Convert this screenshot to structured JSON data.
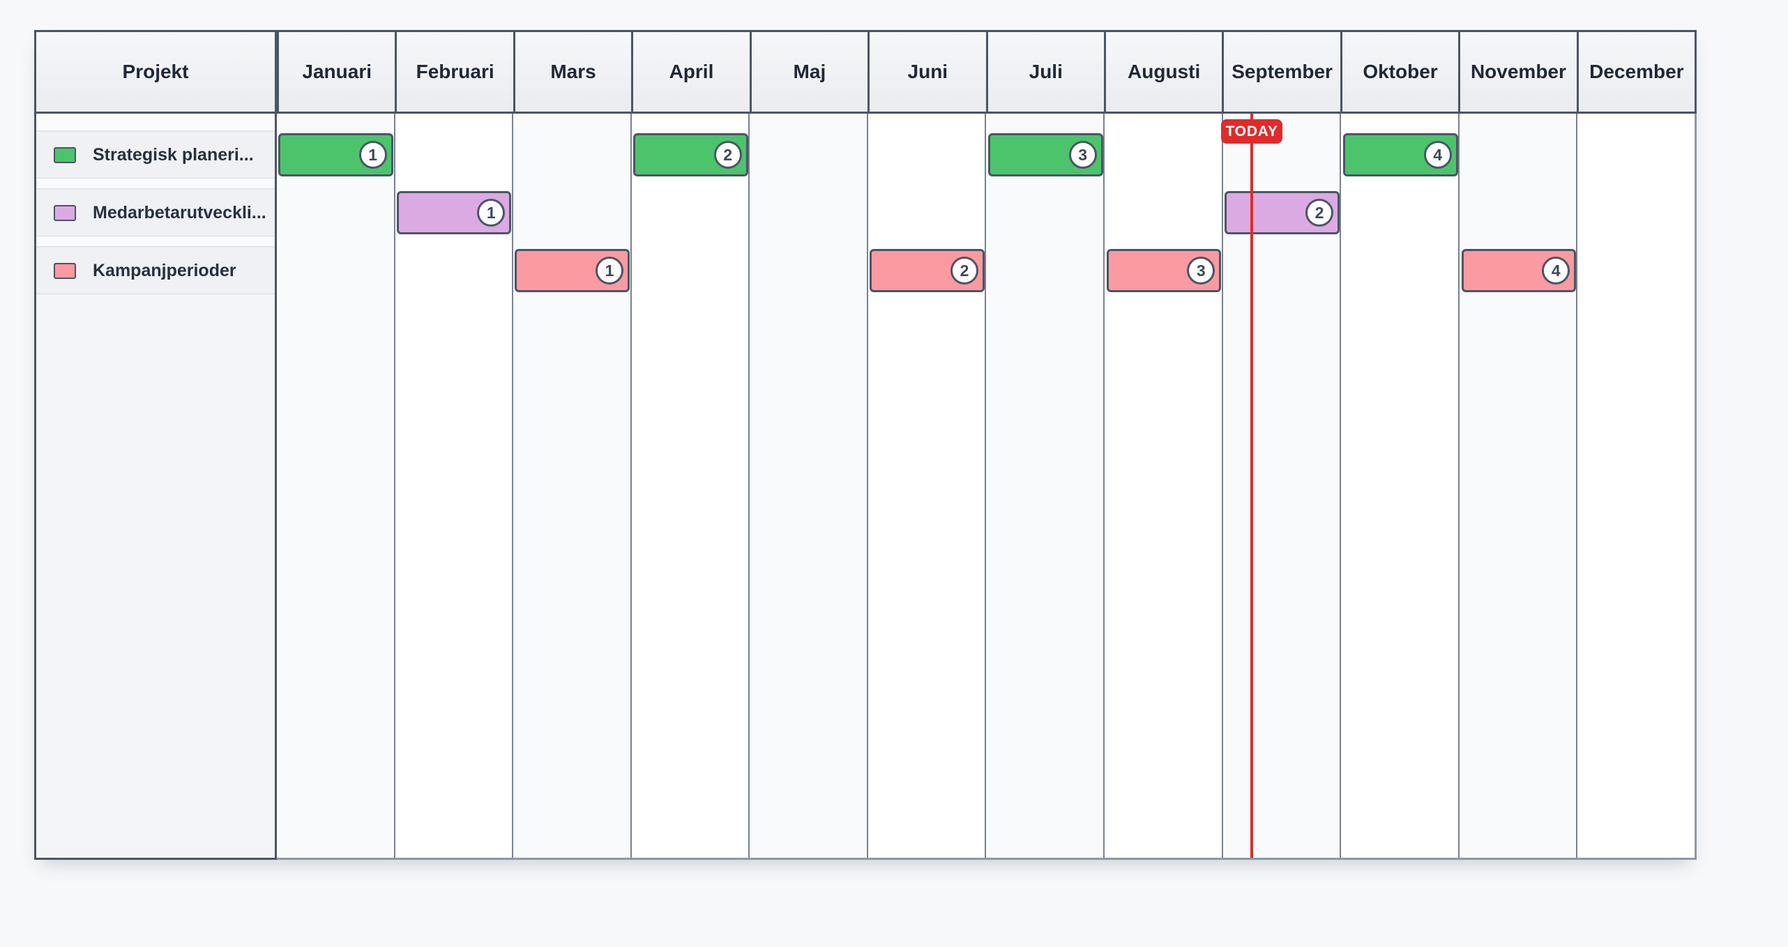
{
  "gantt": {
    "corner_label": "Projekt",
    "months": [
      "Januari",
      "Februari",
      "Mars",
      "April",
      "Maj",
      "Juni",
      "Juli",
      "Augusti",
      "September",
      "Oktober",
      "November",
      "December"
    ],
    "rows": [
      {
        "label": "Strategisk planeri...",
        "color": "#4cc46c"
      },
      {
        "label": "Medarbetarutveckli...",
        "color": "#dcaae2"
      },
      {
        "label": "Kampanjperioder",
        "color": "#fb9aa1"
      }
    ],
    "bars": [
      {
        "row": 0,
        "month": 0,
        "badge": "1"
      },
      {
        "row": 0,
        "month": 3,
        "badge": "2"
      },
      {
        "row": 0,
        "month": 6,
        "badge": "3"
      },
      {
        "row": 0,
        "month": 9,
        "badge": "4"
      },
      {
        "row": 1,
        "month": 1,
        "badge": "1"
      },
      {
        "row": 1,
        "month": 8,
        "badge": "2"
      },
      {
        "row": 2,
        "month": 2,
        "badge": "1"
      },
      {
        "row": 2,
        "month": 5,
        "badge": "2"
      },
      {
        "row": 2,
        "month": 7,
        "badge": "3"
      },
      {
        "row": 2,
        "month": 10,
        "badge": "4"
      }
    ],
    "today": {
      "label": "TODAY",
      "month": 8,
      "fraction": 0.24
    },
    "colors": {
      "page_bg": "#f7f8fa",
      "border_dark": "#4b5565",
      "grid_line": "#78818f",
      "outer_line": "#8e97a5",
      "column_stripe": "#f8fafc",
      "column_plain": "#ffffff",
      "header_bg_top": "#f6f7f9",
      "header_bg_bottom": "#eaecf0",
      "header_text": "#1f2838",
      "sidebar_bg": "#f4f5f8",
      "sidebar_row_bg": "#eff1f5",
      "sidebar_spacer_bg": "#fafbfc",
      "row_label_text": "#27303f",
      "badge_bg": "#ffffff",
      "badge_text": "#3e4857",
      "today_red": "#e02b2b"
    }
  },
  "chart_data": {
    "type": "bar",
    "variant": "gantt-year-timeline",
    "title": "",
    "categories": [
      "Januari",
      "Februari",
      "Mars",
      "April",
      "Maj",
      "Juni",
      "Juli",
      "Augusti",
      "September",
      "Oktober",
      "November",
      "December"
    ],
    "series": [
      {
        "name": "Strategisk planeri...",
        "color": "#4cc46c",
        "bars": [
          {
            "start": "Januari",
            "end": "Januari",
            "label": "1"
          },
          {
            "start": "April",
            "end": "April",
            "label": "2"
          },
          {
            "start": "Juli",
            "end": "Juli",
            "label": "3"
          },
          {
            "start": "Oktober",
            "end": "Oktober",
            "label": "4"
          }
        ]
      },
      {
        "name": "Medarbetarutveckli...",
        "color": "#dcaae2",
        "bars": [
          {
            "start": "Februari",
            "end": "Februari",
            "label": "1"
          },
          {
            "start": "September",
            "end": "September",
            "label": "2"
          }
        ]
      },
      {
        "name": "Kampanjperioder",
        "color": "#fb9aa1",
        "bars": [
          {
            "start": "Mars",
            "end": "Mars",
            "label": "1"
          },
          {
            "start": "Juni",
            "end": "Juni",
            "label": "2"
          },
          {
            "start": "Augusti",
            "end": "Augusti",
            "label": "3"
          },
          {
            "start": "November",
            "end": "November",
            "label": "4"
          }
        ]
      }
    ],
    "annotations": [
      {
        "type": "vline",
        "label": "TODAY",
        "x": "September + 24% of month"
      }
    ],
    "legend_position": "left-sidebar",
    "grid": "vertical-month-columns-alternating"
  }
}
